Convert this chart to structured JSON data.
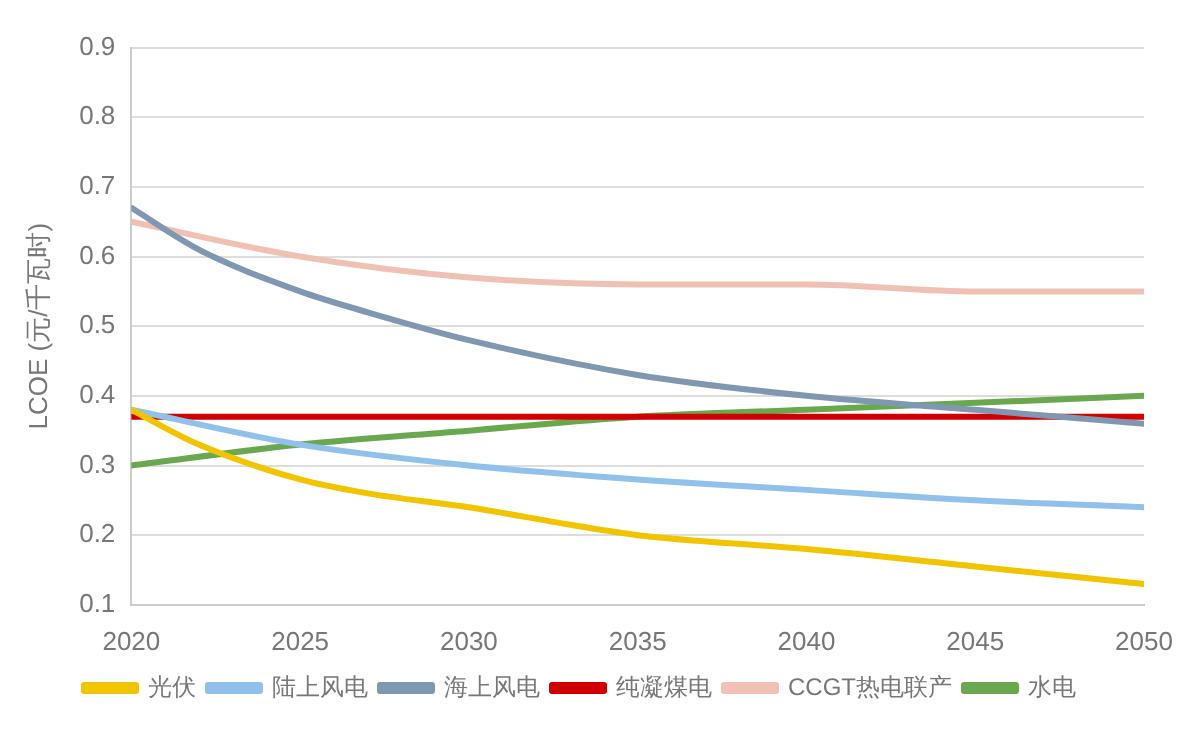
{
  "chart_data": {
    "type": "line",
    "ylabel": "LCOE (元/千瓦时)",
    "xlim": [
      2020,
      2050
    ],
    "xticks": [
      2020,
      2025,
      2030,
      2035,
      2040,
      2045,
      2050
    ],
    "ylim": [
      0.1,
      0.9
    ],
    "yticks": [
      0.1,
      0.2,
      0.3,
      0.4,
      0.5,
      0.6,
      0.7,
      0.8,
      0.9
    ],
    "grid": "y",
    "legend": "bottom",
    "marker": "none",
    "series": [
      {
        "name": "光伏",
        "color": "#f2c400",
        "x": [
          2020,
          2022,
          2025,
          2027,
          2030,
          2033,
          2035,
          2040,
          2045,
          2050
        ],
        "values": [
          0.38,
          0.33,
          0.28,
          0.26,
          0.24,
          0.215,
          0.2,
          0.18,
          0.155,
          0.13
        ]
      },
      {
        "name": "陆上风电",
        "color": "#8fc1ea",
        "x": [
          2020,
          2025,
          2030,
          2035,
          2040,
          2045,
          2050
        ],
        "values": [
          0.38,
          0.33,
          0.3,
          0.28,
          0.265,
          0.25,
          0.24
        ]
      },
      {
        "name": "海上风电",
        "color": "#8097b1",
        "x": [
          2020,
          2022,
          2025,
          2027,
          2030,
          2035,
          2040,
          2045,
          2050
        ],
        "values": [
          0.67,
          0.61,
          0.55,
          0.52,
          0.48,
          0.43,
          0.4,
          0.38,
          0.36
        ]
      },
      {
        "name": "纯凝煤电",
        "color": "#d00000",
        "x": [
          2020,
          2050
        ],
        "values": [
          0.37,
          0.37
        ]
      },
      {
        "name": "CCGT热电联产",
        "color": "#f0c0b4",
        "x": [
          2020,
          2025,
          2030,
          2035,
          2040,
          2045,
          2050
        ],
        "values": [
          0.65,
          0.6,
          0.57,
          0.56,
          0.56,
          0.55,
          0.55
        ]
      },
      {
        "name": "水电",
        "color": "#6aa84f",
        "x": [
          2020,
          2025,
          2030,
          2035,
          2040,
          2045,
          2050
        ],
        "values": [
          0.3,
          0.33,
          0.35,
          0.37,
          0.38,
          0.39,
          0.4
        ]
      }
    ]
  }
}
